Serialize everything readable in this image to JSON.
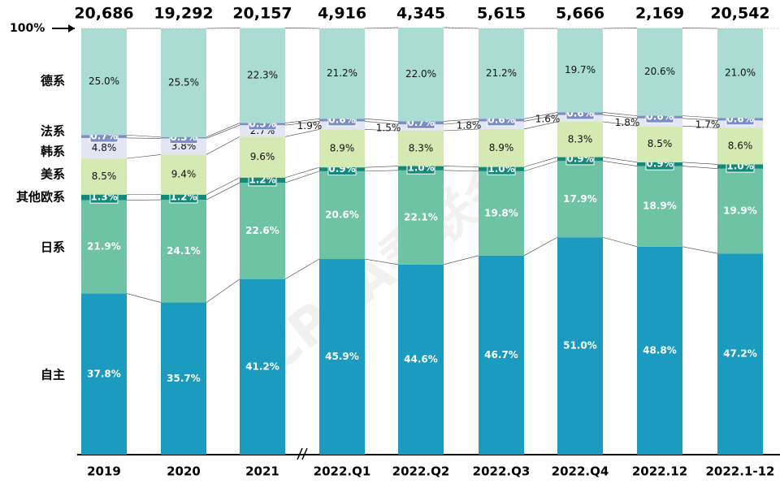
{
  "chart_data": {
    "type": "stacked_bar_100",
    "categories": [
      "2019",
      "2020",
      "2021",
      "2022.Q1",
      "2022.Q2",
      "2022.Q3",
      "2022.Q4",
      "2022.12",
      "2022.1-12"
    ],
    "totals": {
      "values": [
        20686,
        19292,
        20157,
        4916,
        4345,
        5615,
        5666,
        2169,
        20542
      ],
      "value_labels": [
        "20,686",
        "19,292",
        "20,157",
        "4,916",
        "4,345",
        "5,615",
        "5,666",
        "2,169",
        "20,542"
      ]
    },
    "series": [
      {
        "name": "自主",
        "color": "#1b9bbf",
        "label_color": "#ffffff",
        "values": [
          37.8,
          35.7,
          41.2,
          45.9,
          44.6,
          46.7,
          51.0,
          48.8,
          47.2
        ],
        "value_labels": [
          "37.8%",
          "35.7%",
          "41.2%",
          "45.9%",
          "44.6%",
          "46.7%",
          "51.0%",
          "48.8%",
          "47.2%"
        ]
      },
      {
        "name": "日系",
        "color": "#6fc3a5",
        "label_color": "#ffffff",
        "values": [
          21.9,
          24.1,
          22.6,
          20.6,
          22.1,
          19.8,
          17.9,
          18.9,
          19.9
        ],
        "value_labels": [
          "21.9%",
          "24.1%",
          "22.6%",
          "20.6%",
          "22.1%",
          "19.8%",
          "17.9%",
          "18.9%",
          "19.9%"
        ]
      },
      {
        "name": "其他欧系",
        "color": "#13897a",
        "label_color": "#ffffff",
        "values": [
          1.3,
          1.2,
          1.2,
          0.9,
          1.0,
          1.0,
          0.9,
          0.9,
          1.0
        ],
        "value_labels": [
          "1.3%",
          "1.2%",
          "1.2%",
          "0.9%",
          "1.0%",
          "1.0%",
          "0.9%",
          "0.9%",
          "1.0%"
        ]
      },
      {
        "name": "美系",
        "color": "#d5e9b2",
        "label_color": "#111111",
        "values": [
          8.5,
          9.4,
          9.6,
          8.9,
          8.3,
          8.9,
          8.3,
          8.5,
          8.6
        ],
        "value_labels": [
          "8.5%",
          "9.4%",
          "9.6%",
          "8.9%",
          "8.3%",
          "8.9%",
          "8.3%",
          "8.5%",
          "8.6%"
        ]
      },
      {
        "name": "韩系",
        "color": "#e3e6f2",
        "label_color": "#111111",
        "values": [
          4.8,
          3.8,
          2.7,
          1.9,
          1.5,
          1.8,
          1.6,
          1.8,
          1.7
        ],
        "value_labels": [
          "4.8%",
          "3.8%",
          "2.7%",
          "1.9%",
          "1.5%",
          "1.8%",
          "1.6%",
          "1.8%",
          "1.7%"
        ]
      },
      {
        "name": "法系",
        "color": "#7b8dc4",
        "label_color": "#ffffff",
        "values": [
          0.7,
          0.3,
          0.5,
          0.6,
          0.7,
          0.6,
          0.6,
          0.6,
          0.6
        ],
        "value_labels": [
          "0.7%",
          "0.3%",
          "0.5%",
          "0.6%",
          "0.7%",
          "0.6%",
          "0.6%",
          "0.6%",
          "0.6%"
        ]
      },
      {
        "name": "德系",
        "color": "#aadcd4",
        "label_color": "#111111",
        "values": [
          25.0,
          25.5,
          22.3,
          21.2,
          22.0,
          21.2,
          19.7,
          20.6,
          21.0
        ],
        "value_labels": [
          "25.0%",
          "25.5%",
          "22.3%",
          "21.2%",
          "22.0%",
          "21.2%",
          "19.7%",
          "20.6%",
          "21.0%"
        ]
      }
    ],
    "ylim": [
      0,
      100
    ],
    "yticks": [
      {
        "value": 100,
        "label": "100%"
      }
    ],
    "watermark": "CPCA乘联会"
  }
}
